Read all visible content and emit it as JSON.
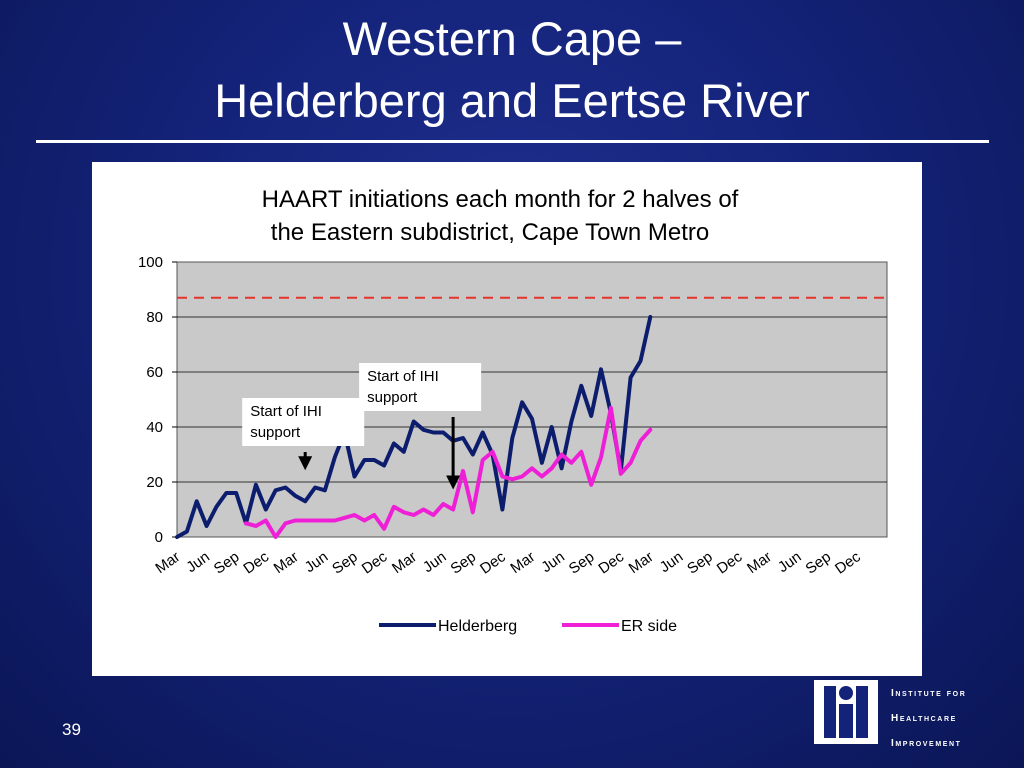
{
  "slide": {
    "title_line1": "Western Cape –",
    "title_line2": "Helderberg and Eertse River",
    "page_number": "39"
  },
  "logo": {
    "line1": "Institute for",
    "line2": "Healthcare",
    "line3": "Improvement"
  },
  "chart_data": {
    "type": "line",
    "title_line1": "HAART initiations each month for 2 halves of",
    "title_line2": "the Eastern subdistrict, Cape Town Metro",
    "ylim": [
      0,
      100
    ],
    "yticks": [
      0,
      20,
      40,
      60,
      80,
      100
    ],
    "grid": true,
    "legend_position": "bottom",
    "x_labels": [
      "Mar",
      "Jun",
      "Sep",
      "Dec",
      "Mar",
      "Jun",
      "Sep",
      "Dec",
      "Mar",
      "Jun",
      "Sep",
      "Dec",
      "Mar",
      "Jun",
      "Sep",
      "Dec",
      "Mar",
      "Jun",
      "Sep",
      "Dec",
      "Mar",
      "Jun",
      "Sep",
      "Dec"
    ],
    "reference_line": {
      "y": 87,
      "color": "#e8332a",
      "style": "dashed"
    },
    "series": [
      {
        "name": "Helderberg",
        "color": "#0c1d6e",
        "values": [
          0,
          2,
          13,
          4,
          11,
          16,
          16,
          5,
          19,
          10,
          17,
          18,
          15,
          13,
          18,
          17,
          29,
          38,
          22,
          28,
          28,
          26,
          34,
          31,
          42,
          39,
          38,
          38,
          35,
          36,
          30,
          38,
          30,
          10,
          36,
          49,
          43,
          27,
          40,
          25,
          42,
          55,
          44,
          61,
          45,
          24,
          58,
          64,
          80
        ]
      },
      {
        "name": "ER side",
        "color": "#ee1fd6",
        "start_index": 7,
        "values": [
          5,
          4,
          6,
          0,
          5,
          6,
          6,
          6,
          6,
          6,
          7,
          8,
          6,
          8,
          3,
          11,
          9,
          8,
          10,
          8,
          12,
          10,
          24,
          9,
          28,
          31,
          22,
          21,
          22,
          25,
          22,
          25,
          30,
          27,
          31,
          19,
          29,
          47,
          23,
          27,
          35,
          39
        ]
      }
    ],
    "annotations": [
      {
        "text_line1": "Start of IHI",
        "text_line2": "support",
        "x_index": 13,
        "arrow_to": 25
      },
      {
        "text_line1": "Start of IHI",
        "text_line2": "support",
        "x_index": 28,
        "arrow_to": 18
      }
    ]
  }
}
